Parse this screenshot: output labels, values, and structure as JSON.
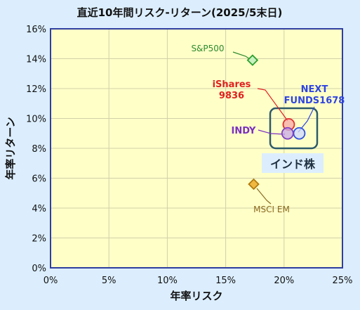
{
  "chart_data": {
    "type": "scatter",
    "title": "直近10年間リスク-リターン(2025/5末日)",
    "xlabel": "年率リスク",
    "ylabel": "年率リターン",
    "xlim": [
      0,
      25
    ],
    "ylim": [
      0,
      16
    ],
    "xticks": [
      "0%",
      "5%",
      "10%",
      "15%",
      "20%",
      "25%"
    ],
    "yticks": [
      "0%",
      "2%",
      "4%",
      "6%",
      "8%",
      "10%",
      "12%",
      "14%",
      "16%"
    ],
    "grid": true,
    "series": [
      {
        "name": "S&P500",
        "x": 17.3,
        "y": 13.9,
        "marker": "diamond",
        "stroke": "#2ca02c",
        "fill": "#c8f0c0",
        "label_color": "#2e8b2e"
      },
      {
        "name": "iShares\n9836",
        "x": 20.4,
        "y": 9.6,
        "marker": "circle",
        "stroke": "#e03030",
        "fill": "#f7a8a8",
        "label_color": "#e02020"
      },
      {
        "name": "NEXT\nFUNDS1678",
        "x": 21.3,
        "y": 9.0,
        "marker": "circle",
        "stroke": "#3050e0",
        "fill": "#cfd8ff",
        "label_color": "#2f45e0"
      },
      {
        "name": "INDY",
        "x": 20.3,
        "y": 9.0,
        "marker": "circle",
        "stroke": "#8040c0",
        "fill": "#c8a8e8",
        "label_color": "#7a2fc0"
      },
      {
        "name": "MSCI EM",
        "x": 17.4,
        "y": 5.6,
        "marker": "diamond",
        "stroke": "#b07a10",
        "fill": "#f0b840",
        "label_color": "#8a6a20"
      }
    ],
    "annotations": [
      {
        "text": "インド株",
        "color": "#1e3040",
        "box_stroke": "#2e5a6a"
      }
    ]
  },
  "colors": {
    "background": "#dceefe",
    "plot_area": "#ffffc8",
    "plot_border": "#2f3f9f",
    "grid": "#d0d0a8"
  }
}
